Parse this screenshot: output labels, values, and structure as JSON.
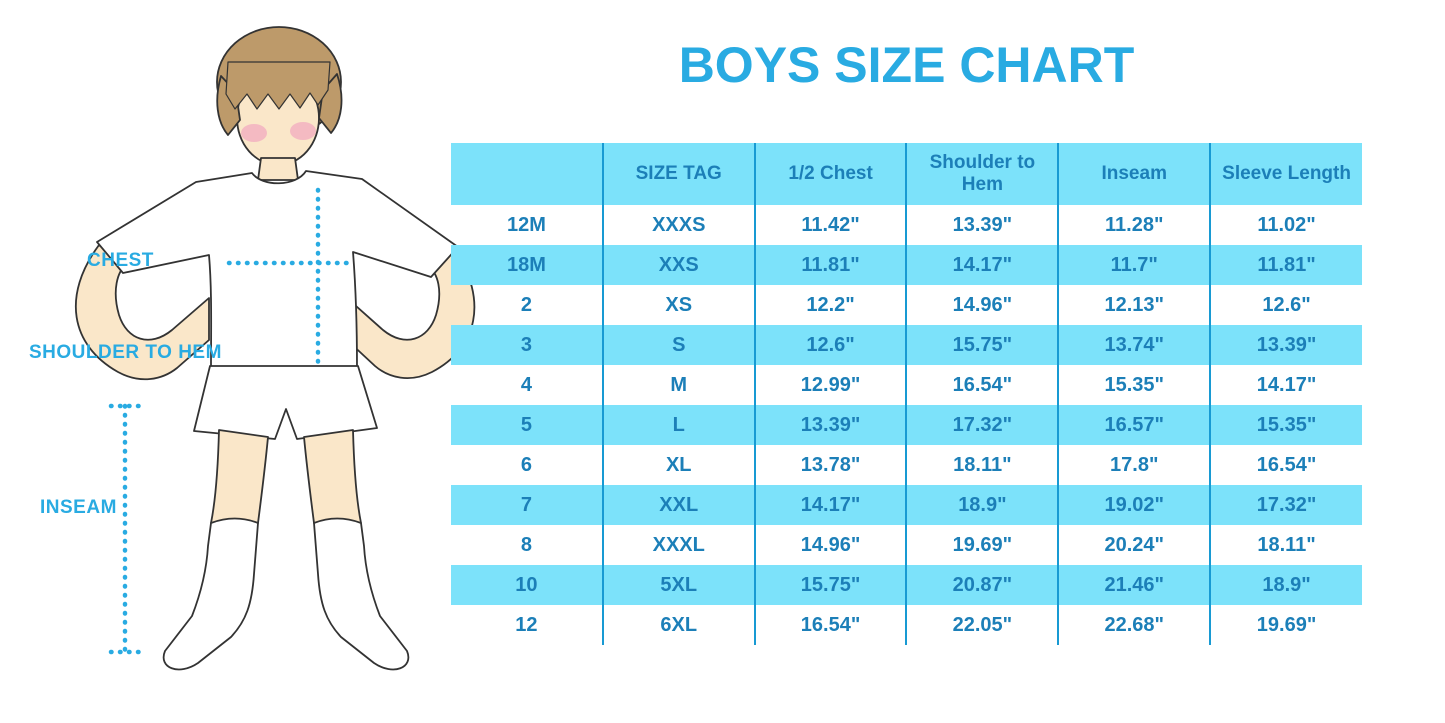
{
  "page": {
    "title": "BOYS SIZE CHART"
  },
  "figure": {
    "description": "boy-with-measurement-lines",
    "labels": {
      "chest": "CHEST",
      "shoulder_to_hem": "SHOULDER TO HEM",
      "inseam": "INSEAM"
    }
  },
  "chart_data": {
    "type": "table",
    "title": "BOYS SIZE CHART",
    "columns": [
      "",
      "SIZE TAG",
      "1/2 Chest",
      "Shoulder to Hem",
      "Inseam",
      "Sleeve Length"
    ],
    "rows": [
      [
        "12M",
        "XXXS",
        "11.42\"",
        "13.39\"",
        "11.28\"",
        "11.02\""
      ],
      [
        "18M",
        "XXS",
        "11.81\"",
        "14.17\"",
        "11.7\"",
        "11.81\""
      ],
      [
        "2",
        "XS",
        "12.2\"",
        "14.96\"",
        "12.13\"",
        "12.6\""
      ],
      [
        "3",
        "S",
        "12.6\"",
        "15.75\"",
        "13.74\"",
        "13.39\""
      ],
      [
        "4",
        "M",
        "12.99\"",
        "16.54\"",
        "15.35\"",
        "14.17\""
      ],
      [
        "5",
        "L",
        "13.39\"",
        "17.32\"",
        "16.57\"",
        "15.35\""
      ],
      [
        "6",
        "XL",
        "13.78\"",
        "18.11\"",
        "17.8\"",
        "16.54\""
      ],
      [
        "7",
        "XXL",
        "14.17\"",
        "18.9\"",
        "19.02\"",
        "17.32\""
      ],
      [
        "8",
        "XXXL",
        "14.96\"",
        "19.69\"",
        "20.24\"",
        "18.11\""
      ],
      [
        "10",
        "5XL",
        "15.75\"",
        "20.87\"",
        "21.46\"",
        "18.9\""
      ],
      [
        "12",
        "6XL",
        "16.54\"",
        "22.05\"",
        "22.68\"",
        "19.69\""
      ]
    ],
    "layout": {
      "row_striping": [
        "white",
        "cyan"
      ],
      "header_background": "#7CE2FA",
      "grid": "vertical-dividers-only"
    }
  },
  "colors": {
    "accent_blue": "#29ABE2",
    "row_cyan": "#7CE2FA",
    "cell_text_blue": "#1C7FB8",
    "column_divider_blue": "#189AD3"
  }
}
